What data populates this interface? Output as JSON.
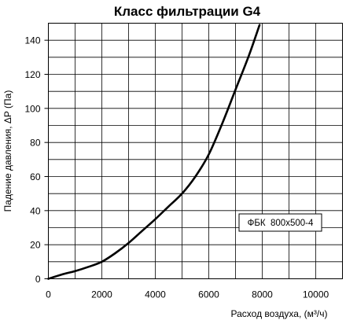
{
  "chart_data": {
    "type": "line",
    "title": "Класс фильтрации G4",
    "xlabel": "Расход воздуха, (м³/ч)",
    "ylabel": "Падение давления, ΔP (Па)",
    "xlim": [
      0,
      11000
    ],
    "ylim": [
      0,
      150
    ],
    "x_ticks": [
      0,
      2000,
      4000,
      6000,
      8000,
      10000
    ],
    "y_ticks": [
      0,
      20,
      40,
      60,
      80,
      100,
      120,
      140
    ],
    "x_grid_step": 1000,
    "y_grid_step": 10,
    "grid": true,
    "legend_position": "bottom-right",
    "series": [
      {
        "name": "ФБК  800x500-4",
        "x": [
          0,
          500,
          1000,
          1500,
          2000,
          2500,
          3000,
          3500,
          4000,
          4500,
          5000,
          5500,
          6000,
          6500,
          7000,
          7500,
          7900
        ],
        "y": [
          0,
          2.5,
          4.5,
          7,
          10,
          15,
          21,
          28,
          35,
          42.5,
          50,
          60,
          73,
          91,
          111,
          131,
          149
        ]
      }
    ]
  }
}
